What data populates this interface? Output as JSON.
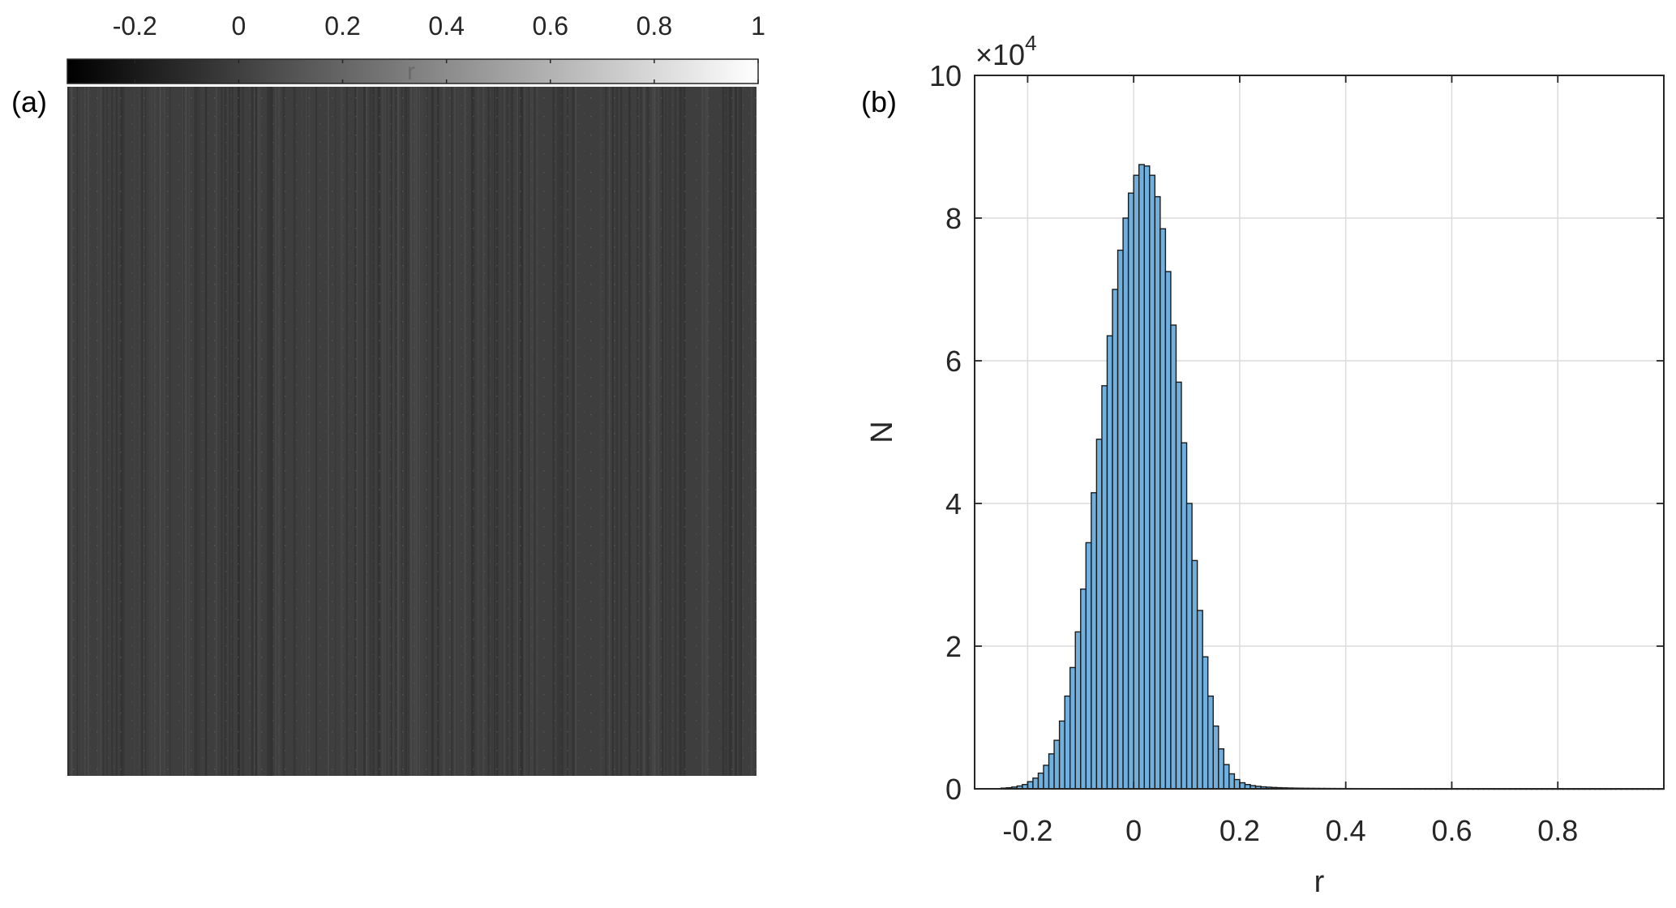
{
  "panels": {
    "a": {
      "label": "(a)"
    },
    "b": {
      "label": "(b)"
    }
  },
  "colors": {
    "hist_fill": "#6fb0df",
    "hist_edge": "#1a1a1a",
    "grid": "#dcdcdc",
    "axis": "#262626",
    "image_base": "#3e3e3e"
  },
  "chart_data": [
    {
      "type": "heatmap",
      "panel": "(a)",
      "colormap": "gray",
      "colorbar": {
        "label": "r",
        "location": "top",
        "range": [
          -0.33,
          1
        ],
        "ticks": [
          -0.2,
          0,
          0.2,
          0.4,
          0.6,
          0.8,
          1
        ],
        "tick_labels": [
          "-0.2",
          "0",
          "0.2",
          "0.4",
          "0.6",
          "0.8",
          "1"
        ]
      },
      "typical_value": 0.02,
      "axes_visible": false
    },
    {
      "type": "bar",
      "subtype": "histogram",
      "panel": "(b)",
      "xlabel": "r",
      "ylabel": "N",
      "y_exponent_label": "×10",
      "y_exponent": "4",
      "xlim": [
        -0.3,
        1.0
      ],
      "ylim": [
        0,
        100000
      ],
      "xticks": [
        -0.2,
        0,
        0.2,
        0.4,
        0.6,
        0.8
      ],
      "xtick_labels": [
        "-0.2",
        "0",
        "0.2",
        "0.4",
        "0.6",
        "0.8"
      ],
      "yticks": [
        0,
        20000,
        40000,
        60000,
        80000,
        100000
      ],
      "ytick_labels": [
        "0",
        "2",
        "4",
        "6",
        "8",
        "10"
      ],
      "grid": true,
      "bin_width": 0.01,
      "bin_start": -0.25,
      "counts": [
        100,
        150,
        250,
        400,
        600,
        1000,
        1500,
        2200,
        3300,
        4900,
        6800,
        9500,
        13000,
        17000,
        22000,
        28000,
        34500,
        41500,
        49000,
        56500,
        63500,
        70000,
        75500,
        80000,
        83500,
        86000,
        87500,
        87300,
        86000,
        83000,
        78500,
        72500,
        65000,
        57000,
        48500,
        40000,
        32000,
        25000,
        18500,
        13000,
        8800,
        5600,
        3400,
        2100,
        1300,
        850,
        600,
        450,
        350,
        280,
        230,
        190,
        160,
        135,
        115,
        100,
        90,
        80,
        72,
        65,
        60,
        55,
        50,
        47,
        44,
        41,
        39,
        37,
        35,
        33,
        31,
        30,
        28,
        27,
        26,
        25,
        24,
        23,
        22,
        21,
        20,
        20,
        19,
        19,
        18,
        18,
        17,
        17,
        16,
        16,
        15,
        15,
        15,
        14,
        14,
        14,
        13,
        13,
        13,
        12,
        12,
        12,
        12,
        11,
        11,
        11,
        11,
        10,
        10,
        10,
        10,
        10,
        10,
        10,
        10,
        10,
        10,
        10,
        10,
        10,
        10,
        10,
        10,
        10,
        10
      ]
    }
  ]
}
